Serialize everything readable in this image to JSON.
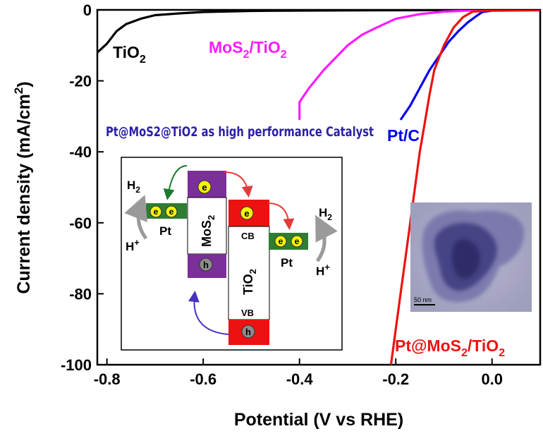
{
  "chart_data": {
    "type": "line",
    "xlabel": "Potential (V vs RHE)",
    "ylabel_main": "Current density (mA/cm",
    "ylabel_sup": "2",
    "ylabel_end": ")",
    "xlim": [
      -0.82,
      0.1
    ],
    "ylim": [
      -100,
      0
    ],
    "xticks": [
      -0.8,
      -0.6,
      -0.4,
      -0.2,
      0.0
    ],
    "xtick_labels": [
      "-0.8",
      "-0.6",
      "-0.4",
      "-0.2",
      "0.0"
    ],
    "yticks": [
      0,
      -20,
      -40,
      -60,
      -80,
      -100
    ],
    "ytick_labels": [
      "0",
      "-20",
      "-40",
      "-60",
      "-80",
      "-100"
    ],
    "grid": false,
    "annotation": "Pt@MoS2@TiO2 as high performance Catalyst",
    "series": [
      {
        "label_main": "TiO",
        "label_sub": "2",
        "label_rest": "",
        "color": "#000000",
        "points": [
          [
            -0.82,
            -12
          ],
          [
            -0.8,
            -9.5
          ],
          [
            -0.78,
            -6
          ],
          [
            -0.76,
            -4
          ],
          [
            -0.73,
            -2.5
          ],
          [
            -0.7,
            -1.5
          ],
          [
            -0.65,
            -1
          ],
          [
            -0.6,
            -0.6
          ],
          [
            -0.5,
            -0.3
          ],
          [
            -0.4,
            -0.2
          ],
          [
            -0.2,
            -0.1
          ],
          [
            0.0,
            -0.05
          ],
          [
            0.1,
            -0.05
          ]
        ]
      },
      {
        "label_main": "MoS",
        "label_sub": "2",
        "label_rest": "/TiO",
        "label_sub2": "2",
        "color": "#ff1aff",
        "points": [
          [
            -0.4,
            -31
          ],
          [
            -0.4,
            -26
          ],
          [
            -0.38,
            -22
          ],
          [
            -0.35,
            -17
          ],
          [
            -0.3,
            -10
          ],
          [
            -0.27,
            -7
          ],
          [
            -0.24,
            -5
          ],
          [
            -0.2,
            -2.5
          ],
          [
            -0.15,
            -1.2
          ],
          [
            -0.1,
            -0.5
          ],
          [
            -0.05,
            -0.2
          ],
          [
            0.0,
            -0.1
          ],
          [
            0.1,
            -0.05
          ]
        ]
      },
      {
        "label_main": "Pt/C",
        "label_sub": "",
        "label_rest": "",
        "color": "#0000ee",
        "points": [
          [
            -0.19,
            -31
          ],
          [
            -0.17,
            -27
          ],
          [
            -0.15,
            -22
          ],
          [
            -0.13,
            -17
          ],
          [
            -0.11,
            -13
          ],
          [
            -0.09,
            -9
          ],
          [
            -0.07,
            -6
          ],
          [
            -0.05,
            -3.5
          ],
          [
            -0.03,
            -1.5
          ],
          [
            -0.02,
            -0.6
          ],
          [
            0.0,
            -0.2
          ],
          [
            0.1,
            -0.1
          ]
        ]
      },
      {
        "label_main": "Pt@MoS",
        "label_sub": "2",
        "label_rest": "/TiO",
        "label_sub2": "2",
        "color": "#ee1111",
        "points": [
          [
            -0.21,
            -100
          ],
          [
            -0.2,
            -90
          ],
          [
            -0.19,
            -80
          ],
          [
            -0.18,
            -70
          ],
          [
            -0.17,
            -60
          ],
          [
            -0.16,
            -50
          ],
          [
            -0.15,
            -40
          ],
          [
            -0.14,
            -32
          ],
          [
            -0.13,
            -24
          ],
          [
            -0.12,
            -17
          ],
          [
            -0.1,
            -10
          ],
          [
            -0.08,
            -5
          ],
          [
            -0.06,
            -2
          ],
          [
            -0.04,
            -0.5
          ],
          [
            0.0,
            -0.1
          ],
          [
            0.1,
            -0.05
          ]
        ]
      }
    ]
  },
  "inset_diagram": {
    "h2": "H",
    "h2_sub": "2",
    "h_plus": "H",
    "h_plus_sup": "+",
    "pt": "Pt",
    "electron": "e",
    "hole": "h",
    "mos2": "MoS",
    "mos2_sub": "2",
    "tio2": "TiO",
    "tio2_sub": "2",
    "cb": "CB",
    "vb": "VB"
  },
  "tem_inset": {
    "scale_bar": "50 nm"
  },
  "colors": {
    "purple_block": "#7a2f99",
    "red_block": "#ee1111",
    "green_block": "#2e7d32",
    "electron_fill": "#f2f20a",
    "hole_fill": "#8c8c8c"
  }
}
